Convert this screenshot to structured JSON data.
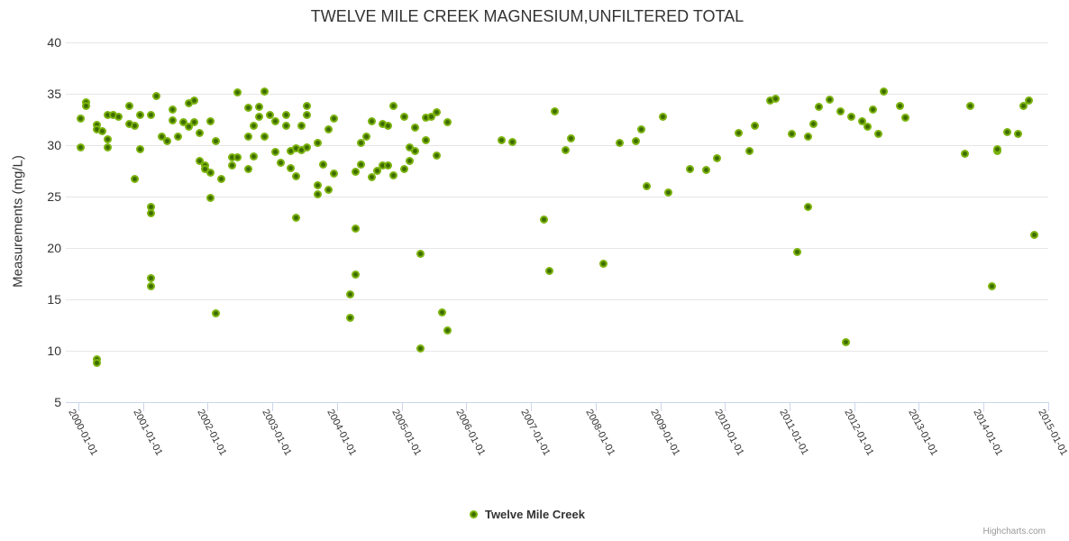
{
  "chart": {
    "credits": "Highcharts.com"
  },
  "chart_data": {
    "type": "scatter",
    "title": "TWELVE MILE CREEK MAGNESIUM,UNFILTERED TOTAL",
    "xlabel": "",
    "ylabel": "Measurements (mg/L)",
    "ylim": [
      5,
      40
    ],
    "y_ticks": [
      5,
      10,
      15,
      20,
      25,
      30,
      35,
      40
    ],
    "x_ticks": [
      "2000-01-01",
      "2001-01-01",
      "2002-01-01",
      "2003-01-01",
      "2004-01-01",
      "2005-01-01",
      "2006-01-01",
      "2007-01-01",
      "2008-01-01",
      "2009-01-01",
      "2010-01-01",
      "2011-01-01",
      "2012-01-01",
      "2013-01-01",
      "2014-01-01",
      "2015-01-01"
    ],
    "x_range_years": [
      2000.0,
      2015.05
    ],
    "grid": true,
    "legend_position": "bottom-center",
    "marker_color": "#7bb30d",
    "marker_center_color": "#3e6c00",
    "grid_color": "#e6e6e6",
    "axis_color": "#ccd6eb",
    "series": [
      {
        "name": "Twelve Mile Creek",
        "points": [
          [
            "2000-01",
            29.8
          ],
          [
            "2000-01",
            32.6
          ],
          [
            "2000-02",
            34.2
          ],
          [
            "2000-02",
            33.8
          ],
          [
            "2000-04",
            32.0
          ],
          [
            "2000-04",
            31.5
          ],
          [
            "2000-04",
            9.2
          ],
          [
            "2000-04",
            8.8
          ],
          [
            "2000-05",
            31.4
          ],
          [
            "2000-06",
            32.9
          ],
          [
            "2000-06",
            30.6
          ],
          [
            "2000-06",
            29.8
          ],
          [
            "2000-07",
            32.9
          ],
          [
            "2000-08",
            32.8
          ],
          [
            "2000-10",
            33.8
          ],
          [
            "2000-10",
            32.1
          ],
          [
            "2000-11",
            31.9
          ],
          [
            "2000-11",
            26.7
          ],
          [
            "2000-12",
            32.9
          ],
          [
            "2000-12",
            29.6
          ],
          [
            "2001-02",
            32.9
          ],
          [
            "2001-02",
            24.0
          ],
          [
            "2001-02",
            23.4
          ],
          [
            "2001-02",
            17.1
          ],
          [
            "2001-02",
            16.3
          ],
          [
            "2001-03",
            34.8
          ],
          [
            "2001-04",
            30.8
          ],
          [
            "2001-05",
            30.4
          ],
          [
            "2001-06",
            33.5
          ],
          [
            "2001-06",
            32.4
          ],
          [
            "2001-07",
            30.8
          ],
          [
            "2001-08",
            32.2
          ],
          [
            "2001-09",
            34.1
          ],
          [
            "2001-09",
            31.8
          ],
          [
            "2001-10",
            34.3
          ],
          [
            "2001-10",
            32.2
          ],
          [
            "2001-11",
            31.2
          ],
          [
            "2001-11",
            28.5
          ],
          [
            "2001-12",
            28.0
          ],
          [
            "2001-12",
            27.7
          ],
          [
            "2002-01",
            32.3
          ],
          [
            "2002-01",
            27.3
          ],
          [
            "2002-01",
            24.9
          ],
          [
            "2002-02",
            30.4
          ],
          [
            "2002-02",
            13.6
          ],
          [
            "2002-03",
            26.7
          ],
          [
            "2002-05",
            28.8
          ],
          [
            "2002-05",
            28.0
          ],
          [
            "2002-06",
            35.1
          ],
          [
            "2002-06",
            28.8
          ],
          [
            "2002-08",
            33.6
          ],
          [
            "2002-08",
            30.8
          ],
          [
            "2002-08",
            27.7
          ],
          [
            "2002-09",
            31.9
          ],
          [
            "2002-09",
            28.9
          ],
          [
            "2002-10",
            33.7
          ],
          [
            "2002-10",
            32.8
          ],
          [
            "2002-11",
            35.2
          ],
          [
            "2002-11",
            30.8
          ],
          [
            "2002-12",
            32.9
          ],
          [
            "2003-01",
            32.3
          ],
          [
            "2003-01",
            29.3
          ],
          [
            "2003-02",
            28.3
          ],
          [
            "2003-03",
            32.9
          ],
          [
            "2003-03",
            31.9
          ],
          [
            "2003-04",
            29.4
          ],
          [
            "2003-04",
            27.8
          ],
          [
            "2003-05",
            29.7
          ],
          [
            "2003-05",
            27.0
          ],
          [
            "2003-05",
            22.9
          ],
          [
            "2003-06",
            31.9
          ],
          [
            "2003-06",
            29.5
          ],
          [
            "2003-07",
            33.8
          ],
          [
            "2003-07",
            32.9
          ],
          [
            "2003-07",
            29.8
          ],
          [
            "2003-09",
            30.2
          ],
          [
            "2003-09",
            26.1
          ],
          [
            "2003-09",
            25.2
          ],
          [
            "2003-10",
            28.1
          ],
          [
            "2003-11",
            31.5
          ],
          [
            "2003-11",
            25.7
          ],
          [
            "2003-12",
            32.6
          ],
          [
            "2003-12",
            27.2
          ],
          [
            "2004-03",
            15.5
          ],
          [
            "2004-03",
            13.2
          ],
          [
            "2004-04",
            27.4
          ],
          [
            "2004-04",
            21.9
          ],
          [
            "2004-04",
            17.4
          ],
          [
            "2004-05",
            30.2
          ],
          [
            "2004-05",
            28.1
          ],
          [
            "2004-06",
            30.8
          ],
          [
            "2004-07",
            32.3
          ],
          [
            "2004-07",
            26.9
          ],
          [
            "2004-08",
            27.5
          ],
          [
            "2004-09",
            32.1
          ],
          [
            "2004-09",
            28.0
          ],
          [
            "2004-10",
            31.9
          ],
          [
            "2004-10",
            28.0
          ],
          [
            "2004-11",
            33.8
          ],
          [
            "2004-11",
            27.1
          ],
          [
            "2005-01",
            32.8
          ],
          [
            "2005-01",
            27.7
          ],
          [
            "2005-02",
            29.8
          ],
          [
            "2005-02",
            28.5
          ],
          [
            "2005-03",
            31.7
          ],
          [
            "2005-03",
            29.4
          ],
          [
            "2005-04",
            19.4
          ],
          [
            "2005-04",
            10.2
          ],
          [
            "2005-05",
            32.7
          ],
          [
            "2005-05",
            30.5
          ],
          [
            "2005-06",
            32.8
          ],
          [
            "2005-07",
            33.2
          ],
          [
            "2005-07",
            29.0
          ],
          [
            "2005-08",
            13.7
          ],
          [
            "2005-09",
            32.2
          ],
          [
            "2005-09",
            12.0
          ],
          [
            "2006-07",
            30.5
          ],
          [
            "2006-09",
            30.3
          ],
          [
            "2007-03",
            22.8
          ],
          [
            "2007-04",
            17.8
          ],
          [
            "2007-05",
            33.3
          ],
          [
            "2007-07",
            29.5
          ],
          [
            "2007-08",
            30.7
          ],
          [
            "2008-02",
            18.5
          ],
          [
            "2008-05",
            30.2
          ],
          [
            "2008-08",
            30.4
          ],
          [
            "2008-09",
            31.5
          ],
          [
            "2008-10",
            26.0
          ],
          [
            "2009-01",
            32.8
          ],
          [
            "2009-02",
            25.4
          ],
          [
            "2009-06",
            27.7
          ],
          [
            "2009-09",
            27.6
          ],
          [
            "2009-11",
            28.7
          ],
          [
            "2010-03",
            31.2
          ],
          [
            "2010-05",
            29.4
          ],
          [
            "2010-06",
            31.9
          ],
          [
            "2010-09",
            34.3
          ],
          [
            "2010-10",
            34.5
          ],
          [
            "2011-01",
            31.1
          ],
          [
            "2011-02",
            19.6
          ],
          [
            "2011-04",
            30.8
          ],
          [
            "2011-04",
            24.0
          ],
          [
            "2011-05",
            32.1
          ],
          [
            "2011-06",
            33.7
          ],
          [
            "2011-08",
            34.4
          ],
          [
            "2011-10",
            33.3
          ],
          [
            "2011-11",
            10.8
          ],
          [
            "2011-12",
            32.8
          ],
          [
            "2012-02",
            32.3
          ],
          [
            "2012-03",
            31.8
          ],
          [
            "2012-04",
            33.5
          ],
          [
            "2012-05",
            31.1
          ],
          [
            "2012-06",
            35.2
          ],
          [
            "2012-09",
            33.8
          ],
          [
            "2012-10",
            32.7
          ],
          [
            "2013-09",
            29.2
          ],
          [
            "2013-10",
            33.8
          ],
          [
            "2014-02",
            16.3
          ],
          [
            "2014-03",
            29.4
          ],
          [
            "2014-03",
            29.6
          ],
          [
            "2014-05",
            31.3
          ],
          [
            "2014-07",
            31.1
          ],
          [
            "2014-08",
            33.8
          ],
          [
            "2014-09",
            34.3
          ],
          [
            "2014-10",
            21.3
          ]
        ]
      }
    ]
  }
}
